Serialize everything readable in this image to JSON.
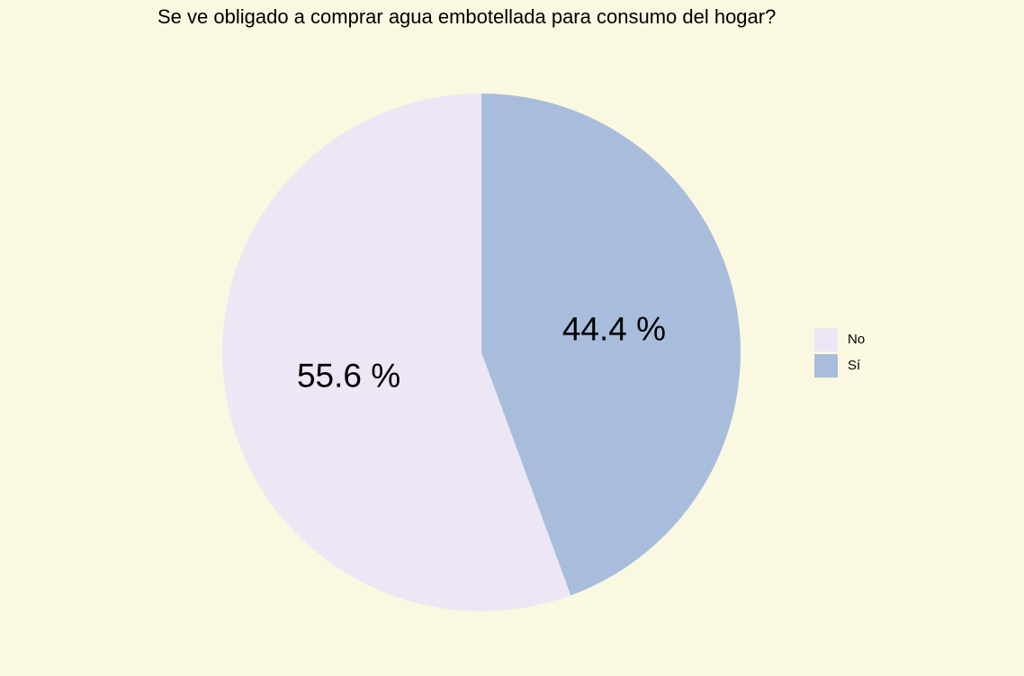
{
  "chart_data": {
    "type": "pie",
    "title": "Se ve obligado a comprar agua embotellada para consumo del hogar?",
    "categories": [
      "No",
      "Sí"
    ],
    "values": [
      55.6,
      44.4
    ],
    "labels": [
      "55.6 %",
      "44.4 %"
    ],
    "colors": [
      "#EDE6F4",
      "#A8BDDC"
    ],
    "legend": "right"
  }
}
